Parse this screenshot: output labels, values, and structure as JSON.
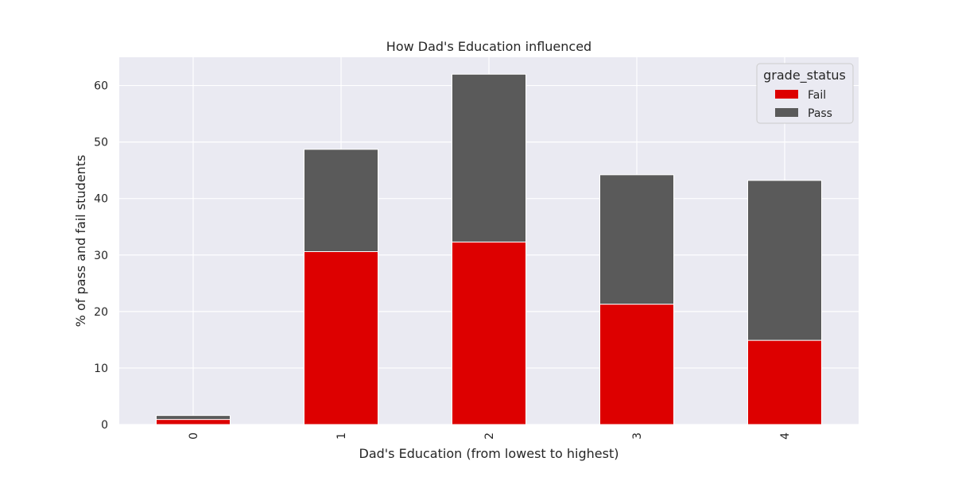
{
  "chart_data": {
    "type": "bar",
    "stacked": true,
    "title": "How Dad's Education influenced",
    "xlabel": "Dad's Education (from lowest to highest)",
    "ylabel": "% of pass and fail students",
    "categories": [
      "0",
      "1",
      "2",
      "3",
      "4"
    ],
    "series": [
      {
        "name": "Fail",
        "color": "#dd0000",
        "values": [
          0.9,
          30.6,
          32.3,
          21.3,
          14.9
        ]
      },
      {
        "name": "Pass",
        "color": "#5a5a5a",
        "values": [
          0.7,
          18.1,
          29.7,
          22.9,
          28.3
        ]
      }
    ],
    "ylim": [
      0,
      65
    ],
    "yticks": [
      0,
      10,
      20,
      30,
      40,
      50,
      60
    ],
    "grid": true,
    "legend": {
      "title": "grade_status",
      "placement": "top-right"
    },
    "background_color": "#eaeaf2",
    "grid_color": "#ffffff"
  }
}
